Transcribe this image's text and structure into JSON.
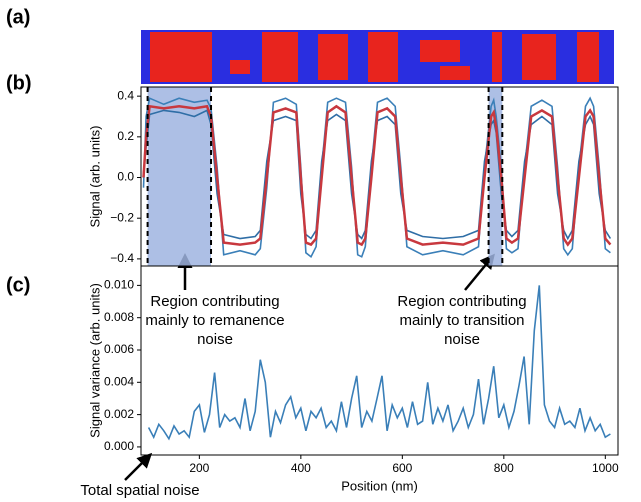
{
  "panel_a": {
    "panel_label": "(a)"
  },
  "chart_data": [
    {
      "type": "line",
      "panel_label": "(b)",
      "ylabel": "Signal (arb. units)",
      "xlim": [
        85,
        1025
      ],
      "ylim": [
        -0.435,
        0.445
      ],
      "yticks": [
        {
          "value": -0.4,
          "label": "−0.4"
        },
        {
          "value": -0.2,
          "label": "−0.2"
        },
        {
          "value": 0,
          "label": "0.0"
        },
        {
          "value": 0.2,
          "label": "0.2"
        },
        {
          "value": 0.4,
          "label": "0.4"
        }
      ],
      "regions": [
        [
          98,
          223
        ],
        [
          770,
          797
        ]
      ],
      "x": [
        90,
        95,
        102,
        130,
        160,
        190,
        215,
        223,
        235,
        248,
        280,
        310,
        320,
        333,
        346,
        370,
        391,
        400,
        410,
        420,
        430,
        441,
        453,
        470,
        488,
        500,
        512,
        520,
        527,
        539,
        551,
        570,
        586,
        597,
        609,
        640,
        680,
        720,
        750,
        762,
        775,
        780,
        785,
        795,
        805,
        816,
        828,
        841,
        854,
        875,
        895,
        906,
        918,
        926,
        935,
        948,
        961,
        970,
        977,
        988,
        1000,
        1010
      ],
      "series": [
        {
          "color": "#3a7fb8",
          "values": [
            -0.05,
            0.3,
            0.39,
            0.36,
            0.39,
            0.37,
            0.38,
            0.34,
            0.05,
            -0.38,
            -0.36,
            -0.38,
            -0.35,
            -0.05,
            0.37,
            0.39,
            0.36,
            0.05,
            -0.37,
            -0.39,
            -0.34,
            0.05,
            0.37,
            0.39,
            0.37,
            0.05,
            -0.38,
            -0.39,
            -0.34,
            0.05,
            0.37,
            0.39,
            0.35,
            0.05,
            -0.34,
            -0.38,
            -0.36,
            -0.38,
            -0.34,
            0.05,
            0.35,
            0.38,
            0.3,
            0.05,
            -0.35,
            -0.37,
            -0.35,
            0.05,
            0.35,
            0.38,
            0.35,
            0.05,
            -0.35,
            -0.38,
            -0.35,
            0.05,
            0.35,
            0.39,
            0.35,
            0.05,
            -0.35,
            -0.37
          ]
        },
        {
          "color": "#2f6ea6",
          "values": [
            0.02,
            0.15,
            0.31,
            0.33,
            0.32,
            0.3,
            0.33,
            0.26,
            -0.08,
            -0.28,
            -0.3,
            -0.29,
            -0.26,
            0.08,
            0.28,
            0.3,
            0.28,
            -0.08,
            -0.28,
            -0.3,
            -0.26,
            0.08,
            0.28,
            0.31,
            0.28,
            -0.08,
            -0.28,
            -0.3,
            -0.26,
            0.08,
            0.28,
            0.3,
            0.26,
            -0.08,
            -0.26,
            -0.29,
            -0.3,
            -0.29,
            -0.26,
            0.08,
            0.26,
            0.28,
            0.22,
            -0.08,
            -0.26,
            -0.29,
            -0.26,
            0.08,
            0.26,
            0.3,
            0.26,
            -0.08,
            -0.26,
            -0.3,
            -0.26,
            0.08,
            0.26,
            0.3,
            0.26,
            -0.08,
            -0.26,
            -0.3
          ]
        },
        {
          "color": "#c8383e",
          "values": [
            0.0,
            0.2,
            0.35,
            0.34,
            0.35,
            0.34,
            0.35,
            0.3,
            0.0,
            -0.32,
            -0.33,
            -0.32,
            -0.3,
            0.0,
            0.32,
            0.34,
            0.32,
            0.0,
            -0.32,
            -0.33,
            -0.3,
            0.0,
            0.32,
            0.35,
            0.32,
            0.0,
            -0.32,
            -0.33,
            -0.3,
            0.0,
            0.32,
            0.34,
            0.3,
            0.0,
            -0.3,
            -0.33,
            -0.32,
            -0.33,
            -0.3,
            0.0,
            0.3,
            0.32,
            0.25,
            0.0,
            -0.3,
            -0.32,
            -0.3,
            0.0,
            0.3,
            0.33,
            0.3,
            0.0,
            -0.3,
            -0.33,
            -0.3,
            0.0,
            0.3,
            0.33,
            0.3,
            0.0,
            -0.3,
            -0.33
          ]
        }
      ],
      "annotations": [
        {
          "lines": [
            "Region contributing",
            "mainly to remanence",
            "noise"
          ]
        },
        {
          "lines": [
            "Region contributing",
            "mainly to transition",
            "noise"
          ]
        }
      ]
    },
    {
      "type": "line",
      "panel_label": "(c)",
      "ylabel": "Signal variance (arb. units)",
      "xlabel": "Position (nm)",
      "xlim": [
        85,
        1025
      ],
      "ylim": [
        -0.0005,
        0.0112
      ],
      "xticks": [
        200,
        400,
        600,
        800,
        1000
      ],
      "yticks": [
        {
          "value": 0,
          "label": "0.000"
        },
        {
          "value": 0.002,
          "label": "0.002"
        },
        {
          "value": 0.004,
          "label": "0.004"
        },
        {
          "value": 0.006,
          "label": "0.006"
        },
        {
          "value": 0.008,
          "label": "0.008"
        },
        {
          "value": 0.01,
          "label": "0.010"
        }
      ],
      "x": [
        100,
        110,
        120,
        130,
        140,
        150,
        160,
        170,
        180,
        190,
        200,
        210,
        220,
        230,
        240,
        250,
        260,
        270,
        280,
        290,
        300,
        310,
        320,
        330,
        340,
        350,
        360,
        370,
        380,
        390,
        400,
        410,
        420,
        430,
        440,
        450,
        460,
        470,
        480,
        490,
        500,
        510,
        520,
        530,
        540,
        550,
        560,
        570,
        580,
        590,
        600,
        610,
        620,
        630,
        640,
        650,
        660,
        670,
        680,
        690,
        700,
        710,
        720,
        730,
        740,
        750,
        760,
        770,
        780,
        790,
        800,
        810,
        820,
        830,
        840,
        850,
        860,
        870,
        880,
        890,
        900,
        910,
        920,
        930,
        940,
        950,
        960,
        970,
        980,
        990,
        1000,
        1010
      ],
      "series": [
        {
          "color": "#3a7fb8",
          "values": [
            0.0012,
            0.0006,
            0.0014,
            0.001,
            0.0005,
            0.0013,
            0.0008,
            0.001,
            0.0006,
            0.0022,
            0.0026,
            0.0009,
            0.002,
            0.0046,
            0.0012,
            0.002,
            0.0016,
            0.0018,
            0.0012,
            0.003,
            0.001,
            0.0022,
            0.0054,
            0.004,
            0.0006,
            0.0022,
            0.0015,
            0.0026,
            0.0031,
            0.0018,
            0.0024,
            0.001,
            0.0022,
            0.0018,
            0.0024,
            0.0012,
            0.0016,
            0.001,
            0.0028,
            0.0012,
            0.003,
            0.0044,
            0.0012,
            0.0022,
            0.0016,
            0.003,
            0.0044,
            0.001,
            0.0026,
            0.0018,
            0.0024,
            0.0012,
            0.0028,
            0.0014,
            0.0016,
            0.004,
            0.0014,
            0.0024,
            0.0016,
            0.0026,
            0.001,
            0.0016,
            0.0024,
            0.0012,
            0.002,
            0.0042,
            0.0014,
            0.003,
            0.005,
            0.0018,
            0.0026,
            0.0012,
            0.0022,
            0.0038,
            0.0056,
            0.0014,
            0.0072,
            0.01,
            0.0026,
            0.0016,
            0.0012,
            0.0024,
            0.0014,
            0.0016,
            0.0012,
            0.0024,
            0.001,
            0.0018,
            0.001,
            0.0014,
            0.0006,
            0.0008
          ]
        }
      ],
      "annotations": [
        {
          "lines": [
            "Total spatial noise"
          ]
        }
      ]
    }
  ]
}
